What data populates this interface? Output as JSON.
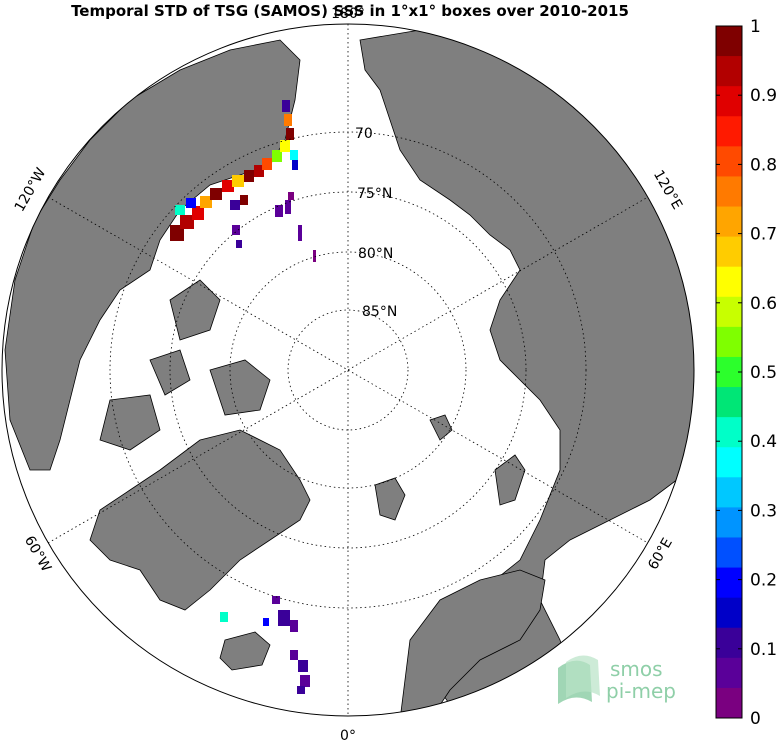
{
  "title": "Temporal STD of TSG (SAMOS) SSS in 1°x1° boxes over 2010-2015",
  "map": {
    "projection": "north polar stereographic",
    "latitude_circle_labels": [
      "70",
      "75°N",
      "80°N",
      "85°N"
    ],
    "longitude_labels": {
      "top": "180°",
      "upper_left": "120°W",
      "upper_right": "120°E",
      "lower_left": "60°W",
      "lower_right": "60°E",
      "bottom": "0°"
    }
  },
  "colorbar": {
    "colormap": "jet",
    "tick_labels": [
      "1",
      "0.9",
      "0.8",
      "0.7",
      "0.6",
      "0.5",
      "0.4",
      "0.3",
      "0.2",
      "0.1",
      "0"
    ],
    "colors": [
      "#7f0000",
      "#b20000",
      "#e00000",
      "#ff1a00",
      "#ff4a00",
      "#ff7a00",
      "#ffa500",
      "#ffcc00",
      "#ffff00",
      "#c8ff00",
      "#7fff00",
      "#2cff2c",
      "#00e676",
      "#00ffc8",
      "#00ffff",
      "#00c8ff",
      "#0094ff",
      "#0050ff",
      "#0000ff",
      "#0000c8",
      "#3a0099",
      "#5a0099",
      "#7a0080"
    ]
  },
  "logo": {
    "line1": "smos",
    "line2": "pi-mep"
  }
}
